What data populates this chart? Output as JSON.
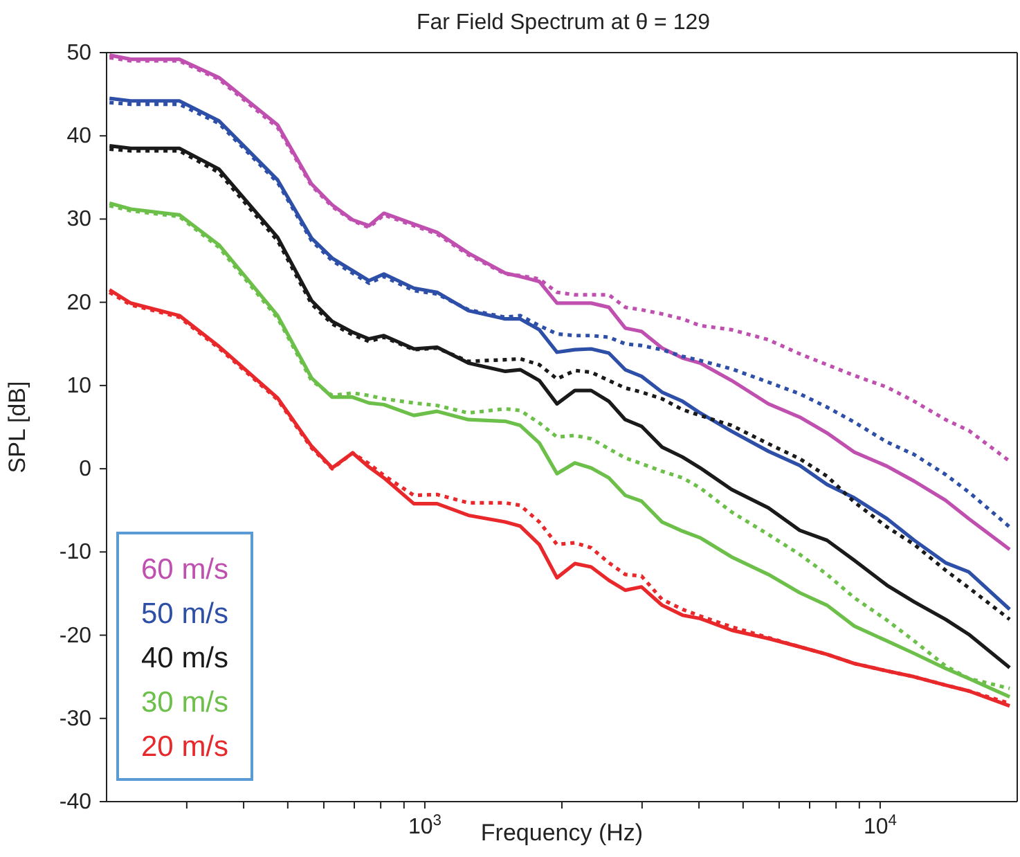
{
  "chart_data": {
    "type": "line",
    "title": "Far Field Spectrum at θ = 129",
    "xlabel": "Frequency (Hz)",
    "ylabel": "SPL [dB]",
    "log": "x",
    "xlim": [
      200,
      20000
    ],
    "ylim": [
      -40,
      50
    ],
    "xticks": [
      {
        "value": 300,
        "label": null
      },
      {
        "value": 400,
        "label": null
      },
      {
        "value": 500,
        "label": null
      },
      {
        "value": 600,
        "label": null
      },
      {
        "value": 700,
        "label": null
      },
      {
        "value": 800,
        "label": null
      },
      {
        "value": 900,
        "label": null
      },
      {
        "value": 1000,
        "label": "10$^{3}$"
      },
      {
        "value": 2000,
        "label": null
      },
      {
        "value": 3000,
        "label": null
      },
      {
        "value": 4000,
        "label": null
      },
      {
        "value": 5000,
        "label": null
      },
      {
        "value": 6000,
        "label": null
      },
      {
        "value": 7000,
        "label": null
      },
      {
        "value": 8000,
        "label": null
      },
      {
        "value": 9000,
        "label": null
      },
      {
        "value": 10000,
        "label": "10$^{4}$"
      }
    ],
    "yticks": [
      -40,
      -30,
      -20,
      -10,
      0,
      10,
      20,
      30,
      40,
      50
    ],
    "marker": "none",
    "legend": "bottom left",
    "x": [
      203,
      226,
      289,
      353,
      475,
      564,
      626,
      694,
      754,
      813,
      946,
      1064,
      1247,
      1502,
      1620,
      1784,
      1951,
      2135,
      2319,
      2536,
      2755,
      2992,
      3319,
      3681,
      4025,
      4718,
      5682,
      6658,
      7642,
      8772,
      10350,
      11880,
      13920,
      15650,
      19250
    ],
    "series": [
      {
        "name": "60 m/s",
        "color": "#c050b0",
        "line_style": "solid",
        "values": [
          49.7,
          49.2,
          49.2,
          47,
          41.3,
          34.2,
          31.7,
          29.9,
          29.2,
          30.7,
          29.4,
          28.4,
          25.9,
          23.5,
          23.1,
          22.5,
          19.9,
          19.9,
          19.9,
          19.4,
          16.9,
          16.5,
          14.5,
          13.3,
          12.7,
          10.6,
          7.8,
          6.2,
          4.3,
          2.0,
          0.3,
          -1.5,
          -3.8,
          -6,
          -9.7
        ]
      },
      {
        "color": "#c050b0",
        "line_style": "dotted",
        "values": [
          49.4,
          49.0,
          49.0,
          46.8,
          41.0,
          34.0,
          31.5,
          29.8,
          29.0,
          30.5,
          29.2,
          28.2,
          25.7,
          23.4,
          23.2,
          22.8,
          21.2,
          20.9,
          20.9,
          20.9,
          19.4,
          19.1,
          18.6,
          18,
          17.2,
          16.7,
          15.5,
          13.8,
          12.5,
          11.2,
          9.8,
          8.1,
          5.9,
          4.6,
          0.9
        ]
      },
      {
        "name": "50 m/s",
        "color": "#2e4fa8",
        "line_style": "solid",
        "values": [
          44.5,
          44.2,
          44.2,
          41.8,
          34.7,
          27.7,
          25.3,
          23.8,
          22.6,
          23.4,
          21.7,
          21.2,
          19,
          18,
          18,
          16.7,
          14,
          14.3,
          14.4,
          13.9,
          11.9,
          11.1,
          9.2,
          8.1,
          6.7,
          4.5,
          2.1,
          0.4,
          -1.9,
          -3.5,
          -6,
          -8.6,
          -11.3,
          -12.4,
          -16.9
        ]
      },
      {
        "color": "#2e4fa8",
        "line_style": "dotted",
        "values": [
          44.0,
          43.8,
          43.8,
          41.5,
          34.4,
          27.4,
          25.0,
          23.5,
          22.3,
          23.1,
          21.4,
          21.0,
          19.1,
          18.2,
          18.4,
          17.2,
          16.2,
          16,
          16,
          15.8,
          15,
          14.8,
          14.3,
          13.5,
          13,
          12,
          10.4,
          9,
          7.4,
          5.6,
          3.2,
          1.7,
          -0.7,
          -2.8,
          -7
        ]
      },
      {
        "name": "40 m/s",
        "color": "#1a1a1a",
        "line_style": "solid",
        "values": [
          38.8,
          38.5,
          38.5,
          36,
          27.8,
          20.2,
          17.7,
          16.4,
          15.6,
          16,
          14.4,
          14.6,
          12.7,
          11.7,
          11.9,
          10.6,
          7.8,
          9.4,
          9.4,
          8.1,
          5.9,
          5.1,
          2.6,
          1.4,
          0.1,
          -2.5,
          -4.7,
          -7.4,
          -8.6,
          -11,
          -14,
          -16,
          -18.1,
          -19.9,
          -23.9
        ]
      },
      {
        "color": "#1a1a1a",
        "line_style": "dotted",
        "values": [
          38.4,
          38.2,
          38.2,
          35.6,
          27.4,
          19.8,
          17.4,
          16.1,
          15.3,
          15.8,
          14.3,
          14.5,
          12.9,
          13.1,
          13.2,
          12.5,
          10.8,
          11.8,
          11.6,
          10.6,
          9.7,
          9.2,
          8.4,
          7.1,
          6.4,
          5.2,
          3,
          1.2,
          -0.9,
          -4,
          -7,
          -9.1,
          -12.2,
          -14.3,
          -18.1
        ]
      },
      {
        "name": "30 m/s",
        "color": "#6cc04a",
        "line_style": "solid",
        "values": [
          31.9,
          31.2,
          30.5,
          26.9,
          18.4,
          10.9,
          8.6,
          8.6,
          7.9,
          7.7,
          6.4,
          6.9,
          5.9,
          5.7,
          5.2,
          3.1,
          -0.6,
          0.7,
          0.1,
          -1.1,
          -3.2,
          -3.9,
          -6.4,
          -7.5,
          -8.3,
          -10.6,
          -12.7,
          -14.9,
          -16.4,
          -18.9,
          -20.7,
          -22.2,
          -24,
          -25.2,
          -27.4
        ]
      },
      {
        "color": "#6cc04a",
        "line_style": "dotted",
        "values": [
          31.6,
          31.0,
          30.3,
          26.6,
          18.1,
          10.6,
          8.8,
          9.1,
          8.8,
          8.4,
          7.9,
          7.6,
          6.7,
          7.2,
          7,
          5.5,
          3.8,
          4,
          3.6,
          2.4,
          1.3,
          0.6,
          -0.3,
          -1.1,
          -2.3,
          -5.2,
          -7.9,
          -10.3,
          -12.7,
          -15.5,
          -18.2,
          -20.7,
          -23.7,
          -25.2,
          -26.4
        ]
      },
      {
        "name": "20 m/s",
        "color": "#e8282a",
        "line_style": "solid",
        "values": [
          21.5,
          19.9,
          18.4,
          14.7,
          8.5,
          2.7,
          0.1,
          1.9,
          0.2,
          -1.1,
          -4.2,
          -4.2,
          -5.6,
          -6.4,
          -6.9,
          -9.1,
          -13.1,
          -11.4,
          -11.8,
          -13.4,
          -14.6,
          -14.2,
          -16.4,
          -17.6,
          -18,
          -19.4,
          -20.4,
          -21.4,
          -22.3,
          -23.4,
          -24.3,
          -25,
          -26,
          -26.7,
          -28.5
        ]
      },
      {
        "color": "#e8282a",
        "line_style": "dotted",
        "values": [
          21.2,
          19.7,
          18.2,
          14.5,
          8.3,
          2.5,
          0.0,
          1.9,
          0.6,
          -0.8,
          -3.2,
          -3.1,
          -4.1,
          -4.1,
          -4.4,
          -6.4,
          -9.1,
          -8.9,
          -9.5,
          -11.3,
          -12.7,
          -12.9,
          -15.7,
          -16.9,
          -17.7,
          -19,
          -20.3,
          -21.4,
          -22.3,
          -23.4,
          -24.3,
          -25,
          -26,
          -26.7,
          -28.2
        ]
      }
    ]
  }
}
